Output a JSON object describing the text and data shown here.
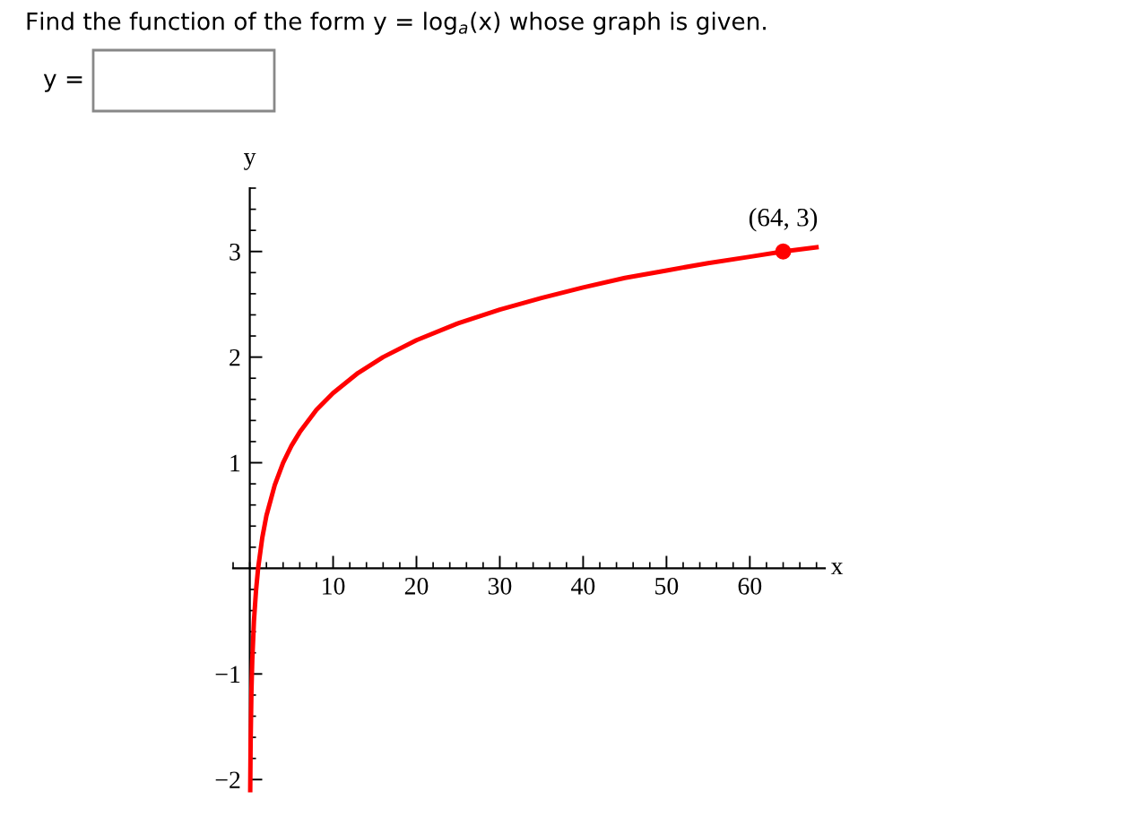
{
  "chart_data": {
    "type": "line",
    "title": "Find the function of the form y = log$_{a}$(x) whose graph is given.",
    "xlabel": "x",
    "ylabel": "y",
    "annotations": [
      "y =",
      {
        "text": "(64, 3)",
        "x": 64,
        "y": 3
      }
    ],
    "series": [
      {
        "color": "#ff0000",
        "x": [
          0.055,
          0.1,
          0.2,
          0.3,
          0.5,
          0.75,
          1,
          1.5,
          2,
          3,
          4,
          5,
          6,
          8,
          10,
          13,
          16,
          20,
          25,
          30,
          35,
          40,
          45,
          50,
          55,
          60,
          64,
          68
        ],
        "values": [
          -2.1,
          -1.66,
          -1.16,
          -0.87,
          -0.5,
          -0.21,
          0,
          0.29,
          0.5,
          0.79,
          1,
          1.16,
          1.29,
          1.5,
          1.66,
          1.85,
          2,
          2.16,
          2.32,
          2.45,
          2.56,
          2.66,
          2.75,
          2.82,
          2.89,
          2.95,
          3,
          3.04
        ]
      },
      {
        "type": "scatter",
        "color": "#ff0000",
        "marker": "circle",
        "x": [
          64
        ],
        "values": [
          3
        ]
      }
    ],
    "xlim": [
      -2,
      69
    ],
    "ylim": [
      -2.1,
      3.6
    ],
    "xticks": [
      10,
      20,
      30,
      40,
      50,
      60
    ],
    "yticks": [
      -2,
      -1,
      1,
      2,
      3
    ],
    "grid": false,
    "legend": false
  }
}
